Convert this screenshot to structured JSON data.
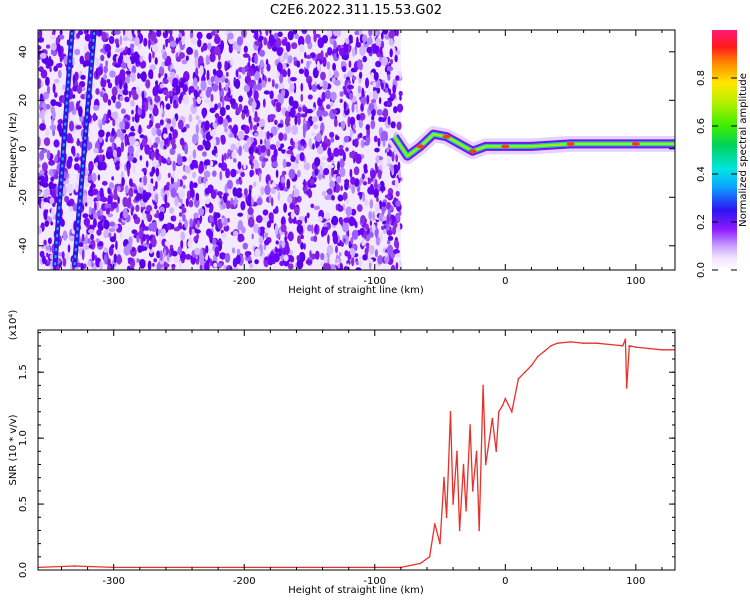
{
  "title": "C2E6.2022.311.15.53.G02",
  "chart_data": [
    {
      "type": "heatmap",
      "xlabel": "Height of straight line (km)",
      "ylabel": "Frequency (Hz)",
      "xlim": [
        -358,
        130
      ],
      "ylim": [
        -50,
        49
      ],
      "x_ticks": [
        -300,
        -200,
        -100,
        0,
        100
      ],
      "y_ticks": [
        -40,
        -20,
        0,
        20,
        40
      ],
      "colorbar": {
        "label": "Normalized spectral amplitude",
        "range": [
          0,
          1
        ],
        "ticks": [
          0.0,
          0.2,
          0.4,
          0.6,
          0.8
        ]
      },
      "noise_region_x": [
        -358,
        -80
      ],
      "signal_line": {
        "x": [
          -85,
          -75,
          -65,
          -55,
          -45,
          -35,
          -25,
          -15,
          0,
          20,
          50,
          80,
          100,
          130
        ],
        "y": [
          5,
          -3,
          1,
          6,
          5,
          2,
          -1,
          1,
          1,
          1,
          2,
          2,
          2,
          2
        ]
      },
      "streaks": [
        {
          "x": [
            -345,
            -332
          ],
          "y": [
            -48,
            48
          ]
        },
        {
          "x": [
            -330,
            -315
          ],
          "y": [
            -48,
            48
          ]
        }
      ]
    },
    {
      "type": "line",
      "xlabel": "Height of straight line (km)",
      "ylabel": "SNR (10 * v/v)",
      "scale_label": "(x10⁴)",
      "xlim": [
        -358,
        130
      ],
      "ylim": [
        0,
        1.82
      ],
      "x_ticks": [
        -300,
        -200,
        -100,
        0,
        100
      ],
      "y_ticks": [
        0.0,
        0.5,
        1.0,
        1.5
      ],
      "color": "#e8312a",
      "series": [
        {
          "x": [
            -358,
            -330,
            -300,
            -250,
            -200,
            -150,
            -100,
            -80,
            -65,
            -58,
            -54,
            -50,
            -47,
            -45,
            -42,
            -40,
            -37,
            -35,
            -32,
            -30,
            -27,
            -25,
            -22,
            -20,
            -17,
            -15,
            -12,
            -10,
            -7,
            -5,
            -2,
            0,
            5,
            10,
            15,
            20,
            25,
            30,
            35,
            40,
            50,
            60,
            70,
            80,
            90,
            92,
            93,
            95,
            100,
            110,
            120,
            130
          ],
          "y": [
            0.02,
            0.03,
            0.02,
            0.02,
            0.02,
            0.02,
            0.02,
            0.02,
            0.05,
            0.1,
            0.35,
            0.2,
            0.7,
            0.4,
            1.2,
            0.5,
            0.9,
            0.3,
            0.8,
            0.45,
            1.1,
            0.6,
            0.9,
            0.3,
            1.4,
            0.8,
            1.0,
            1.15,
            0.9,
            1.2,
            1.25,
            1.3,
            1.2,
            1.45,
            1.5,
            1.55,
            1.62,
            1.66,
            1.7,
            1.72,
            1.73,
            1.72,
            1.72,
            1.71,
            1.7,
            1.75,
            1.38,
            1.7,
            1.69,
            1.68,
            1.67,
            1.67
          ]
        }
      ]
    }
  ]
}
